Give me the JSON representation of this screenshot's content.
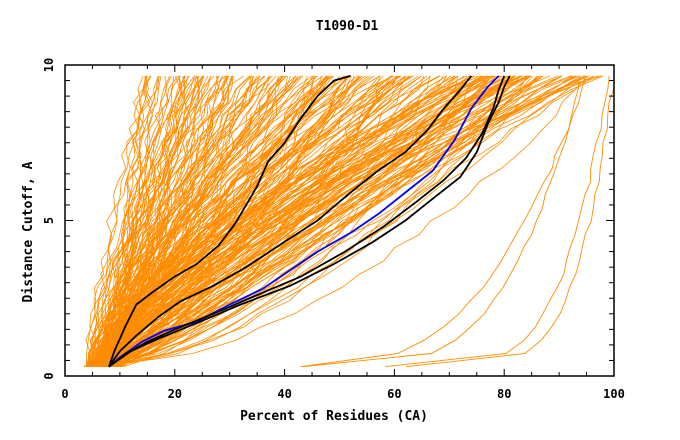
{
  "chart_data": {
    "type": "line",
    "title": "T1090-D1",
    "xlabel": "Percent of Residues (CA)",
    "ylabel": "Distance Cutoff, A",
    "xlim": [
      0,
      100
    ],
    "ylim": [
      0,
      10
    ],
    "x_ticks": [
      "0",
      "20",
      "40",
      "60",
      "80",
      "100"
    ],
    "y_ticks": [
      "0",
      "5",
      "10"
    ],
    "grid": false,
    "colors": {
      "background_models": "#ff8c00",
      "highlight": "#000000",
      "blue_highlight": "#0000ff",
      "axes": "#000000"
    },
    "series": [
      {
        "color": "#0000ff",
        "points": [
          [
            8,
            0.3
          ],
          [
            10,
            0.6
          ],
          [
            14,
            1.1
          ],
          [
            18,
            1.45
          ],
          [
            24,
            1.75
          ],
          [
            30,
            2.3
          ],
          [
            36,
            2.8
          ],
          [
            41,
            3.4
          ],
          [
            46,
            4.0
          ],
          [
            52,
            4.6
          ],
          [
            57,
            5.2
          ],
          [
            62,
            5.9
          ],
          [
            67,
            6.6
          ],
          [
            71,
            7.6
          ],
          [
            74,
            8.6
          ],
          [
            77,
            9.3
          ],
          [
            79,
            9.65
          ]
        ]
      },
      {
        "color": "#000000",
        "points": [
          [
            8,
            0.3
          ],
          [
            9,
            0.8
          ],
          [
            11,
            1.6
          ],
          [
            13,
            2.3
          ],
          [
            16,
            2.7
          ],
          [
            20,
            3.2
          ],
          [
            24,
            3.6
          ],
          [
            28,
            4.2
          ],
          [
            31,
            4.9
          ],
          [
            33,
            5.5
          ],
          [
            35,
            6.1
          ],
          [
            37,
            6.9
          ],
          [
            40,
            7.5
          ],
          [
            43,
            8.3
          ],
          [
            46,
            9.0
          ],
          [
            49,
            9.5
          ],
          [
            52,
            9.65
          ]
        ]
      },
      {
        "color": "#000000",
        "points": [
          [
            8,
            0.3
          ],
          [
            10,
            0.8
          ],
          [
            13,
            1.3
          ],
          [
            17,
            1.9
          ],
          [
            21,
            2.4
          ],
          [
            27,
            2.9
          ],
          [
            33,
            3.5
          ],
          [
            39,
            4.2
          ],
          [
            46,
            5.0
          ],
          [
            52,
            5.9
          ],
          [
            57,
            6.6
          ],
          [
            62,
            7.2
          ],
          [
            66,
            7.9
          ],
          [
            69,
            8.6
          ],
          [
            72,
            9.2
          ],
          [
            74,
            9.65
          ]
        ]
      },
      {
        "color": "#000000",
        "points": [
          [
            8,
            0.3
          ],
          [
            11,
            0.7
          ],
          [
            15,
            1.1
          ],
          [
            20,
            1.5
          ],
          [
            27,
            2.0
          ],
          [
            35,
            2.6
          ],
          [
            43,
            3.2
          ],
          [
            51,
            4.0
          ],
          [
            58,
            4.8
          ],
          [
            64,
            5.6
          ],
          [
            69,
            6.3
          ],
          [
            73,
            7.0
          ],
          [
            76,
            7.8
          ],
          [
            78,
            8.6
          ],
          [
            79,
            9.2
          ],
          [
            80,
            9.65
          ]
        ]
      },
      {
        "color": "#000000",
        "points": [
          [
            8,
            0.3
          ],
          [
            12,
            0.8
          ],
          [
            17,
            1.2
          ],
          [
            24,
            1.7
          ],
          [
            32,
            2.3
          ],
          [
            41,
            2.9
          ],
          [
            49,
            3.6
          ],
          [
            56,
            4.3
          ],
          [
            62,
            5.0
          ],
          [
            67,
            5.7
          ],
          [
            72,
            6.4
          ],
          [
            75,
            7.2
          ],
          [
            77,
            8.1
          ],
          [
            79,
            8.8
          ],
          [
            80,
            9.3
          ],
          [
            81,
            9.65
          ]
        ]
      }
    ]
  }
}
